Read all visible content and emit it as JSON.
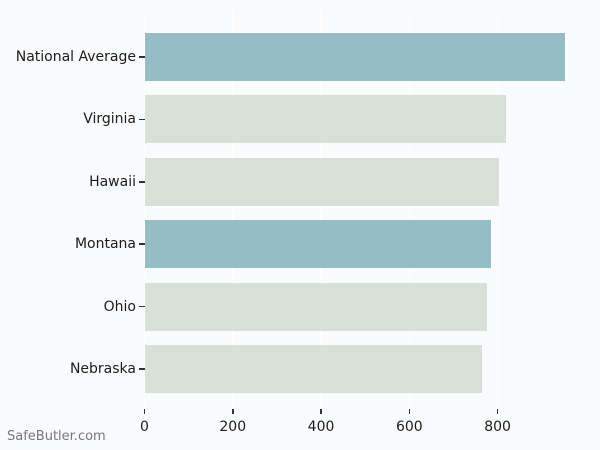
{
  "watermark": "SafeButler.com",
  "colors": {
    "background": "#fafbfc",
    "bar_default": "#d7e1d8",
    "bar_highlight": "#94bdc6",
    "gridline": "#ffffff",
    "tick": "#333333",
    "label_text": "#1c1c1c",
    "watermark_text": "#76767c"
  },
  "chart_data": {
    "type": "bar",
    "orientation": "horizontal",
    "title": "",
    "xlabel": "",
    "ylabel": "",
    "categories": [
      "National Average",
      "Virginia",
      "Hawaii",
      "Montana",
      "Ohio",
      "Nebraska"
    ],
    "values": [
      952,
      820,
      803,
      786,
      776,
      765
    ],
    "bar_styles": [
      "highlight",
      "default",
      "default",
      "highlight",
      "default",
      "default"
    ],
    "xlim": [
      0,
      1032
    ],
    "xticks": [
      0,
      200,
      400,
      600,
      800
    ],
    "grid": "vertical gridlines at xticks, drawn behind bars",
    "legend": "none"
  }
}
